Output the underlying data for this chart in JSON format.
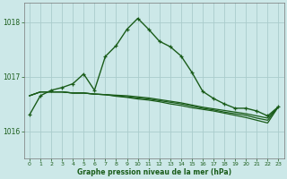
{
  "title": "Graphe pression niveau de la mer (hPa)",
  "background_color": "#cce8e8",
  "plot_bg_color": "#cce8e8",
  "grid_color_major": "#aacccc",
  "grid_color_minor": "#bbdddd",
  "line_color": "#1a5c1a",
  "xlim": [
    -0.5,
    23.5
  ],
  "ylim": [
    1015.5,
    1018.35
  ],
  "yticks": [
    1016,
    1017,
    1018
  ],
  "xticks": [
    0,
    1,
    2,
    3,
    4,
    5,
    6,
    7,
    8,
    9,
    10,
    11,
    12,
    13,
    14,
    15,
    16,
    17,
    18,
    19,
    20,
    21,
    22,
    23
  ],
  "main_y": [
    1016.3,
    1016.65,
    1016.75,
    1016.8,
    1016.87,
    1017.05,
    1016.75,
    1017.37,
    1017.57,
    1017.87,
    1018.07,
    1017.87,
    1017.65,
    1017.55,
    1017.38,
    1017.08,
    1016.73,
    1016.6,
    1016.5,
    1016.42,
    1016.42,
    1016.37,
    1016.28,
    1016.45
  ],
  "flat1_y": [
    1016.65,
    1016.72,
    1016.72,
    1016.72,
    1016.7,
    1016.7,
    1016.68,
    1016.67,
    1016.66,
    1016.65,
    1016.63,
    1016.61,
    1016.58,
    1016.55,
    1016.52,
    1016.48,
    1016.44,
    1016.41,
    1016.38,
    1016.35,
    1016.32,
    1016.28,
    1016.24,
    1016.45
  ],
  "flat2_y": [
    1016.65,
    1016.72,
    1016.72,
    1016.72,
    1016.7,
    1016.7,
    1016.68,
    1016.67,
    1016.65,
    1016.63,
    1016.61,
    1016.59,
    1016.56,
    1016.53,
    1016.5,
    1016.46,
    1016.42,
    1016.39,
    1016.35,
    1016.32,
    1016.29,
    1016.24,
    1016.2,
    1016.45
  ],
  "flat3_y": [
    1016.65,
    1016.72,
    1016.72,
    1016.72,
    1016.7,
    1016.7,
    1016.68,
    1016.67,
    1016.64,
    1016.62,
    1016.59,
    1016.57,
    1016.54,
    1016.5,
    1016.47,
    1016.43,
    1016.4,
    1016.37,
    1016.33,
    1016.29,
    1016.25,
    1016.2,
    1016.15,
    1016.45
  ]
}
